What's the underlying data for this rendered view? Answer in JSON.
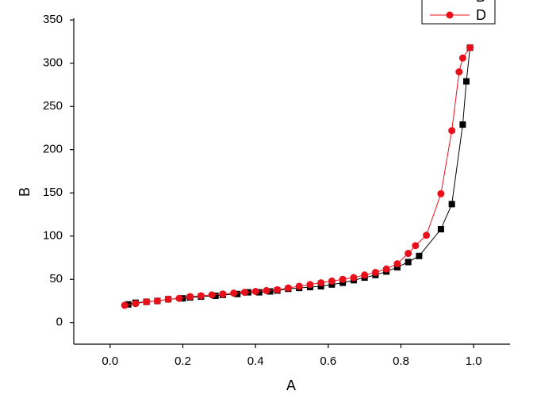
{
  "chart_data": {
    "type": "scatter",
    "x_label": "A",
    "y_label": "B",
    "xlim": [
      -0.1,
      1.1
    ],
    "ylim": [
      -25,
      352
    ],
    "xticks": [
      {
        "value": 0,
        "label": "0.0"
      },
      0.2,
      0.4,
      0.6,
      0.8,
      {
        "value": 1,
        "label": "1.0"
      }
    ],
    "yticks": [
      0,
      50,
      100,
      150,
      200,
      250,
      300,
      350
    ],
    "legend": "top-right",
    "series": [
      {
        "name": "B",
        "color": "#000000",
        "marker": "square",
        "x": [
          0.05,
          0.07,
          0.1,
          0.13,
          0.16,
          0.2,
          0.22,
          0.25,
          0.29,
          0.31,
          0.35,
          0.38,
          0.41,
          0.44,
          0.46,
          0.49,
          0.52,
          0.55,
          0.58,
          0.61,
          0.64,
          0.67,
          0.7,
          0.73,
          0.76,
          0.79,
          0.82,
          0.85,
          0.91,
          0.94,
          0.97,
          0.98,
          0.99
        ],
        "values": [
          21,
          23,
          24,
          25,
          27,
          28,
          29,
          30,
          31,
          32,
          33,
          35,
          35,
          36,
          37,
          39,
          40,
          41,
          42,
          44,
          46,
          49,
          52,
          55,
          59,
          64,
          70,
          77,
          108,
          137,
          229,
          279,
          318
        ]
      },
      {
        "name": "D",
        "color": "#e8101a",
        "marker": "circle",
        "x": [
          0.04,
          0.07,
          0.1,
          0.13,
          0.16,
          0.19,
          0.22,
          0.25,
          0.28,
          0.31,
          0.34,
          0.37,
          0.4,
          0.43,
          0.46,
          0.49,
          0.52,
          0.55,
          0.58,
          0.61,
          0.64,
          0.67,
          0.7,
          0.73,
          0.76,
          0.79,
          0.82,
          0.84,
          0.87,
          0.91,
          0.94,
          0.96,
          0.97,
          0.99
        ],
        "values": [
          20,
          22,
          24,
          25,
          27,
          28,
          30,
          31,
          32,
          33,
          34,
          35,
          36,
          37,
          38,
          40,
          42,
          44,
          46,
          48,
          50,
          52,
          55,
          58,
          62,
          68,
          80,
          89,
          101,
          149,
          222,
          290,
          306,
          318
        ]
      }
    ]
  }
}
